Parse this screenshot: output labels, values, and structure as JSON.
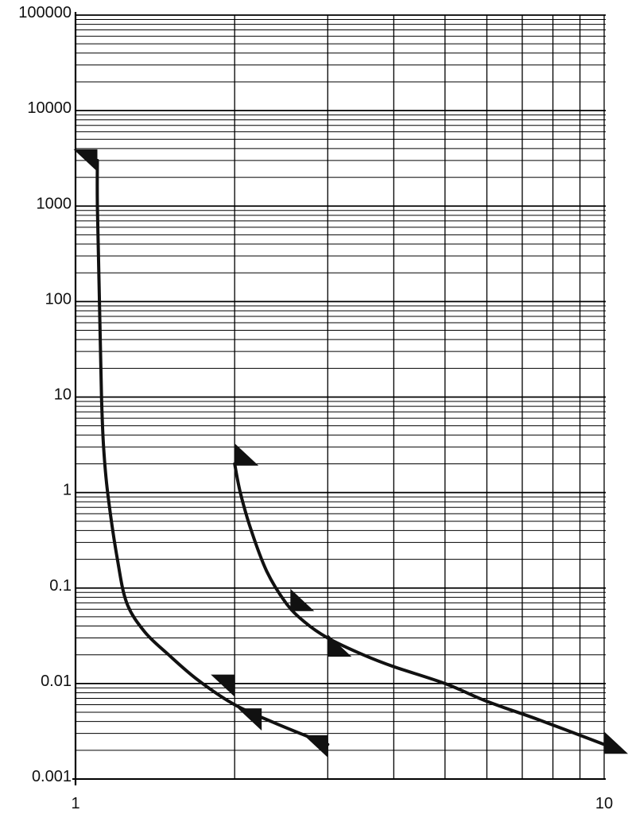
{
  "chart_data": {
    "type": "line",
    "title": "",
    "xlabel": "",
    "ylabel": "",
    "x_scale": "log",
    "y_scale": "log",
    "xlim": [
      1,
      10
    ],
    "ylim": [
      0.001,
      100000
    ],
    "grid": true,
    "x_ticks": [
      {
        "value": 1,
        "label": "1"
      },
      {
        "value": 10,
        "label": "10"
      }
    ],
    "y_ticks": [
      {
        "value": 100000,
        "label": "100000"
      },
      {
        "value": 10000,
        "label": "10000"
      },
      {
        "value": 1000,
        "label": "1000"
      },
      {
        "value": 100,
        "label": "100"
      },
      {
        "value": 10,
        "label": "10"
      },
      {
        "value": 1,
        "label": "1"
      },
      {
        "value": 0.1,
        "label": "0.1"
      },
      {
        "value": 0.01,
        "label": "0.01"
      },
      {
        "value": 0.001,
        "label": "0.001"
      }
    ],
    "series": [
      {
        "x": [
          1.1,
          1.1,
          1.11,
          1.12,
          1.13,
          1.15,
          1.2,
          1.25,
          1.35,
          1.5,
          1.7,
          2.0,
          2.4,
          3.0
        ],
        "y": [
          3000,
          1000,
          100,
          10,
          3,
          1,
          0.2,
          0.07,
          0.035,
          0.02,
          0.011,
          0.006,
          0.0038,
          0.0023
        ]
      },
      {
        "x": [
          2.0,
          2.05,
          2.15,
          2.3,
          2.5,
          2.7,
          3.0,
          3.5,
          4.0,
          5.0,
          6.0,
          7.5,
          10.0
        ],
        "y": [
          2.0,
          1.0,
          0.4,
          0.15,
          0.07,
          0.045,
          0.03,
          0.02,
          0.015,
          0.01,
          0.0065,
          0.0042,
          0.0023
        ]
      }
    ],
    "markers": [
      {
        "x": 1.1,
        "y": 3000,
        "dir": "down-right"
      },
      {
        "x": 2.0,
        "y": 0.0095,
        "dir": "down-right"
      },
      {
        "x": 2.25,
        "y": 0.0042,
        "dir": "down-right"
      },
      {
        "x": 3.0,
        "y": 0.0022,
        "dir": "down-right"
      },
      {
        "x": 2.0,
        "y": 2.5,
        "dir": "up-right"
      },
      {
        "x": 2.55,
        "y": 0.075,
        "dir": "up-right"
      },
      {
        "x": 3.0,
        "y": 0.025,
        "dir": "up-right"
      },
      {
        "x": 10.0,
        "y": 0.0024,
        "dir": "up-right"
      }
    ]
  }
}
